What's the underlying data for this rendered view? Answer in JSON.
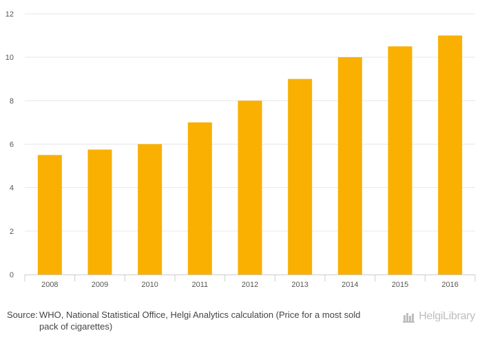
{
  "chart_data": {
    "type": "bar",
    "categories": [
      "2008",
      "2009",
      "2010",
      "2011",
      "2012",
      "2013",
      "2014",
      "2015",
      "2016"
    ],
    "values": [
      5.5,
      5.75,
      6.0,
      7.0,
      8.0,
      9.0,
      10.0,
      10.5,
      11.0
    ],
    "ylim": [
      0,
      12
    ],
    "yticks": [
      "0",
      "2",
      "4",
      "6",
      "8",
      "10",
      "12"
    ],
    "title": "",
    "xlabel": "",
    "ylabel": "",
    "grid": true,
    "bar_color": "#F9B000"
  },
  "footer": {
    "source_prefix": "Source:",
    "source_text": "WHO, National Statistical Office, Helgi Analytics calculation (Price for a most sold pack of cigarettes)"
  },
  "brand": {
    "name": "HelgiLibrary",
    "icon": "helgi-library-logo-icon",
    "color": "#BDBDBD"
  }
}
